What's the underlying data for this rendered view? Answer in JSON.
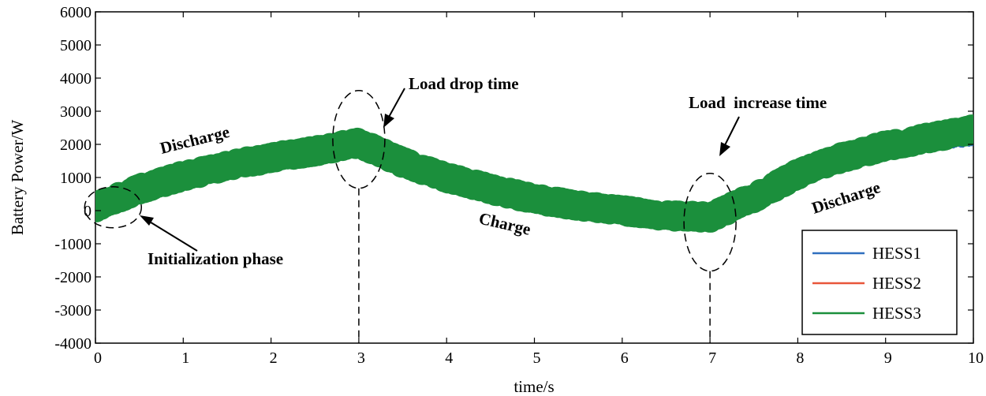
{
  "chart_data": {
    "type": "line",
    "title": "",
    "xlabel": "time/s",
    "ylabel": "Battery Power/W",
    "xlim": [
      0,
      10
    ],
    "ylim": [
      -4000,
      6000
    ],
    "xticks": [
      0,
      1,
      2,
      3,
      4,
      5,
      6,
      7,
      8,
      9,
      10
    ],
    "yticks": [
      -4000,
      -3000,
      -2000,
      -1000,
      0,
      1000,
      2000,
      3000,
      4000,
      5000,
      6000
    ],
    "xtick_labels": [
      "0",
      "1",
      "2",
      "3",
      "4",
      "5",
      "6",
      "7",
      "8",
      "9",
      "10"
    ],
    "ytick_labels": [
      "-4000",
      "-3000",
      "-2000",
      "-1000",
      "0",
      "1000",
      "2000",
      "3000",
      "4000",
      "5000",
      "6000"
    ],
    "grid": false,
    "legend_position": "bottom-right",
    "series": [
      {
        "name": "HESS1",
        "color": "#2f6fbf",
        "x": [
          0,
          0.5,
          1,
          1.5,
          2,
          2.5,
          3,
          3.5,
          4,
          4.5,
          5,
          5.5,
          6,
          6.5,
          7,
          7.5,
          8,
          8.5,
          9,
          9.5,
          10
        ],
        "y": [
          -150,
          400,
          800,
          1100,
          1350,
          1550,
          1750,
          1150,
          700,
          350,
          50,
          -150,
          -300,
          -450,
          -500,
          100,
          800,
          1300,
          1650,
          1900,
          2050
        ]
      },
      {
        "name": "HESS2",
        "color": "#e8563a",
        "x": [
          0,
          0.5,
          1,
          1.5,
          2,
          2.5,
          3,
          3.5,
          4,
          4.5,
          5,
          5.5,
          6,
          6.5,
          7,
          7.5,
          8,
          8.5,
          9,
          9.5,
          10
        ],
        "y": [
          300,
          850,
          1250,
          1550,
          1800,
          2000,
          2300,
          1700,
          1250,
          900,
          600,
          400,
          250,
          100,
          50,
          650,
          1350,
          1850,
          2200,
          2450,
          2700
        ]
      },
      {
        "name": "HESS3",
        "color": "#1b8f3c",
        "x": [
          0,
          0.5,
          1,
          1.5,
          2,
          2.5,
          3,
          3.5,
          4,
          4.5,
          5,
          5.5,
          6,
          6.5,
          7,
          7.5,
          8,
          8.5,
          9,
          9.5,
          10
        ],
        "y": [
          100,
          650,
          1050,
          1350,
          1600,
          1800,
          2050,
          1450,
          1000,
          650,
          350,
          150,
          0,
          -150,
          -200,
          400,
          1100,
          1600,
          1950,
          2200,
          2450
        ]
      }
    ],
    "annotations": [
      {
        "text": "Load drop time",
        "x": 3,
        "y": 2100
      },
      {
        "text": "Load  increase time",
        "x": 7,
        "y": -100
      },
      {
        "text": "Initialization phase",
        "x": 0.2,
        "y": 100
      },
      {
        "text": "Discharge",
        "x": 1.3
      },
      {
        "text": "Charge",
        "x": 5
      },
      {
        "text": "Discharge",
        "x": 8.8
      }
    ]
  }
}
